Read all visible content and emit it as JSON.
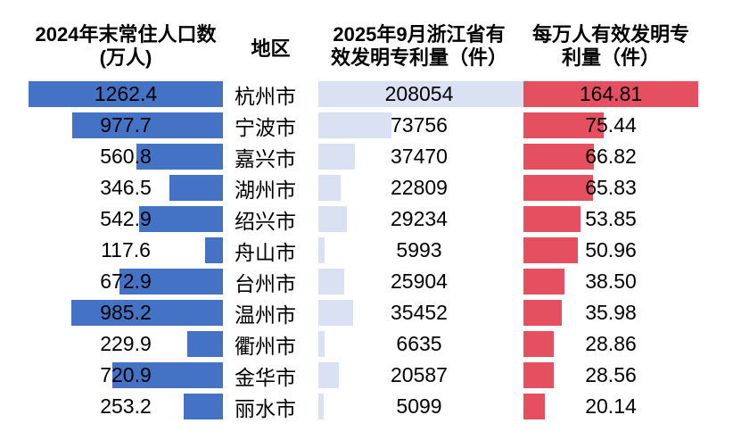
{
  "chart_data": {
    "type": "bar",
    "orientation": "horizontal",
    "categories": [
      "杭州市",
      "宁波市",
      "嘉兴市",
      "湖州市",
      "绍兴市",
      "舟山市",
      "台州市",
      "温州市",
      "衢州市",
      "金华市",
      "丽水市"
    ],
    "series": [
      {
        "name": "2024年末常住人口数（万人）",
        "values": [
          1262.4,
          977.7,
          560.8,
          346.5,
          542.9,
          117.6,
          672.9,
          985.2,
          229.9,
          720.9,
          253.2
        ],
        "color": "#4472C4",
        "align": "right",
        "max": 1262.4
      },
      {
        "name": "2025年9月浙江省有效发明专利量（件）",
        "values": [
          208054,
          73756,
          37470,
          22809,
          29234,
          5993,
          25904,
          35452,
          6635,
          20587,
          5099
        ],
        "color": "#D9E1F2",
        "align": "left",
        "max": 208054
      },
      {
        "name": "每万人有效发明专利量（件）",
        "values": [
          164.81,
          75.44,
          66.82,
          65.83,
          53.85,
          50.96,
          38.5,
          35.98,
          28.86,
          28.56,
          20.14
        ],
        "color": "#E45060",
        "align": "left",
        "max": 164.81
      }
    ],
    "legend_position": "none",
    "grid": false
  },
  "headers": {
    "population": [
      "2024年末常住人口数",
      "(万人)"
    ],
    "region": "地区",
    "patents": [
      "2025年9月浙江省有",
      "效发明专利量（件）"
    ],
    "per_capita": [
      "每万人有效发明专",
      "利量（件）"
    ]
  },
  "colors": {
    "population_bar": "#4472C4",
    "patents_bar": "#D9E1F2",
    "per_capita_bar": "#E45060",
    "text": "#000000",
    "background": "#FFFFFF"
  },
  "maxes": {
    "population": 1262.4,
    "patents": 208054,
    "per_capita": 164.81
  },
  "rows": [
    {
      "region": "杭州市",
      "population": "1262.4",
      "patents": "208054",
      "per_capita": "164.81"
    },
    {
      "region": "宁波市",
      "population": "977.7",
      "patents": "73756",
      "per_capita": "75.44"
    },
    {
      "region": "嘉兴市",
      "population": "560.8",
      "patents": "37470",
      "per_capita": "66.82"
    },
    {
      "region": "湖州市",
      "population": "346.5",
      "patents": "22809",
      "per_capita": "65.83"
    },
    {
      "region": "绍兴市",
      "population": "542.9",
      "patents": "29234",
      "per_capita": "53.85"
    },
    {
      "region": "舟山市",
      "population": "117.6",
      "patents": "5993",
      "per_capita": "50.96"
    },
    {
      "region": "台州市",
      "population": "672.9",
      "patents": "25904",
      "per_capita": "38.50"
    },
    {
      "region": "温州市",
      "population": "985.2",
      "patents": "35452",
      "per_capita": "35.98"
    },
    {
      "region": "衢州市",
      "population": "229.9",
      "patents": "6635",
      "per_capita": "28.86"
    },
    {
      "region": "金华市",
      "population": "720.9",
      "patents": "20587",
      "per_capita": "28.56"
    },
    {
      "region": "丽水市",
      "population": "253.2",
      "patents": "5099",
      "per_capita": "20.14"
    }
  ]
}
